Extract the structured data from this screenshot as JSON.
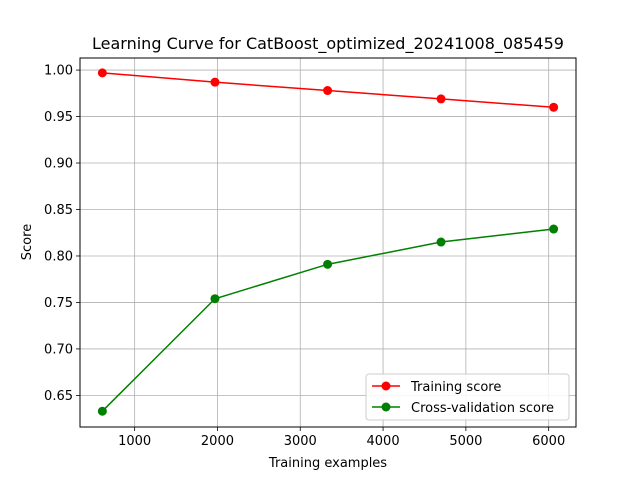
{
  "chart_data": {
    "type": "line",
    "title": "Learning Curve for CatBoost_optimized_20241008_085459",
    "xlabel": "Training examples",
    "ylabel": "Score",
    "xlim": [
      340,
      6330
    ],
    "ylim": [
      0.616,
      1.013
    ],
    "xticks": [
      1000,
      2000,
      3000,
      4000,
      5000,
      6000
    ],
    "yticks": [
      0.65,
      0.7,
      0.75,
      0.8,
      0.85,
      0.9,
      0.95,
      1.0
    ],
    "grid": true,
    "legend_position": "bottom-right",
    "x": [
      610,
      1970,
      3330,
      4700,
      6060
    ],
    "series": [
      {
        "name": "Training score",
        "color": "#ff0000",
        "values": [
          0.997,
          0.987,
          0.978,
          0.969,
          0.96
        ]
      },
      {
        "name": "Cross-validation score",
        "color": "#008000",
        "values": [
          0.633,
          0.754,
          0.791,
          0.815,
          0.829
        ]
      }
    ]
  }
}
